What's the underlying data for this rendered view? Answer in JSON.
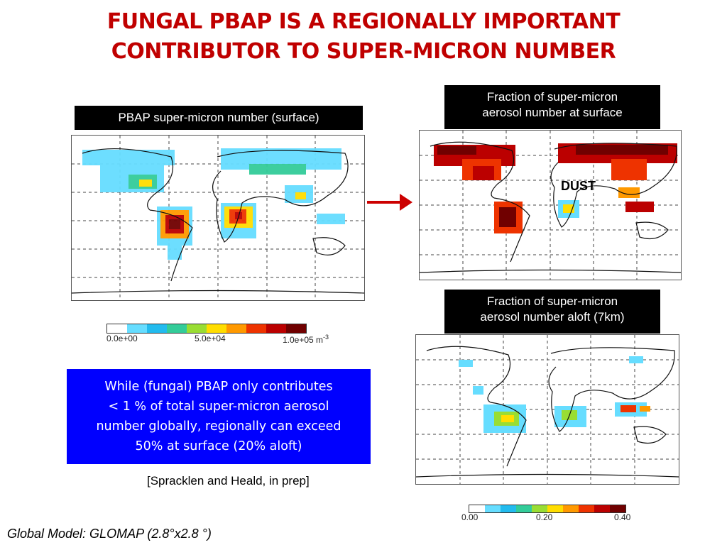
{
  "title_line1": "FUNGAL PBAP IS A REGIONALLY IMPORTANT",
  "title_line2": "CONTRIBUTOR TO SUPER-MICRON NUMBER",
  "left_map": {
    "label": "PBAP super-micron number (surface)",
    "colorbar": {
      "min_label": "0.0e+00",
      "mid_label": "5.0e+04",
      "max_label": "1.0e+05 m",
      "unit_sup": "-3"
    }
  },
  "right_top_map": {
    "label_line1": "Fraction of super-micron",
    "label_line2": "aerosol number at surface",
    "annotation": "DUST"
  },
  "right_bottom_map": {
    "label_line1": "Fraction of super-micron",
    "label_line2": "aerosol number aloft (7km)",
    "colorbar": {
      "min_label": "0.00",
      "mid_label": "0.20",
      "max_label": "0.40"
    }
  },
  "note": {
    "line1": "While (fungal) PBAP only contributes",
    "line2": "< 1 % of total super-micron aerosol",
    "line3": "number globally, regionally can exceed",
    "line4": "50% at surface (20% aloft)"
  },
  "citation": "[Spracklen and Heald, in prep]",
  "footer": "Global Model: GLOMAP (2.8°x2.8 °)",
  "colors": {
    "title": "#c00000",
    "arrow": "#cc0000",
    "note_bg": "#0000ff",
    "scale": [
      "#ffffff",
      "#66ddff",
      "#22bbee",
      "#33cc99",
      "#99dd33",
      "#ffdd00",
      "#ff9900",
      "#ee3300",
      "#bb0000",
      "#700000"
    ]
  }
}
